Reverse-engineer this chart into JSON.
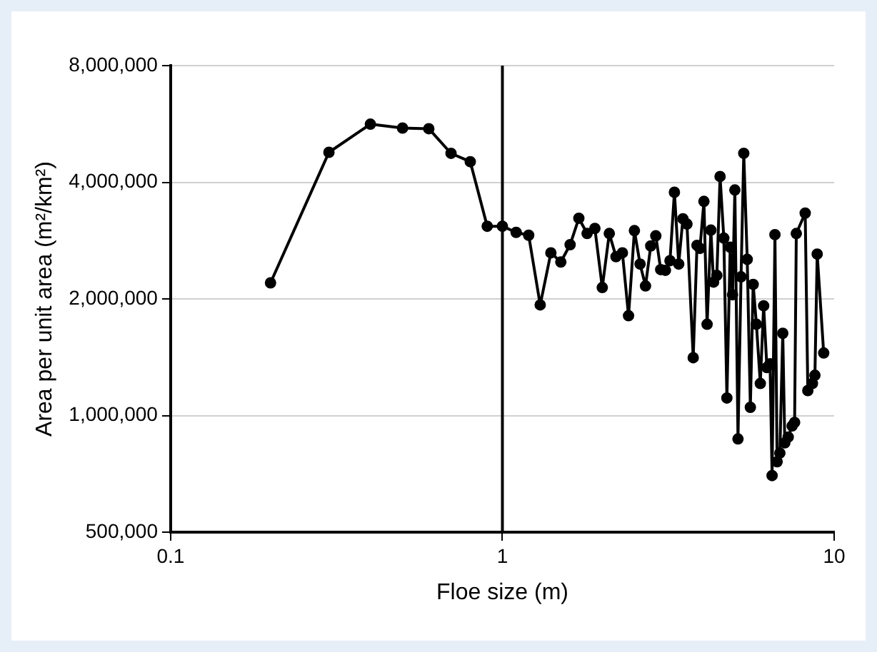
{
  "chart_data": {
    "type": "line",
    "xlabel": "Floe size (m)",
    "ylabel": "Area per unit area (m²/km²)",
    "log": "xy",
    "xlim": [
      0.1,
      10
    ],
    "xticks": [
      0.1,
      1,
      10
    ],
    "ylim": [
      500000,
      8000000
    ],
    "yticks": [
      {
        "value": 500000,
        "label": "500,000"
      },
      {
        "value": 1000000,
        "label": "1,000,000"
      },
      {
        "value": 2000000,
        "label": "2,000,000"
      },
      {
        "value": 4000000,
        "label": "4,000,000"
      },
      {
        "value": 8000000,
        "label": "8,000,000"
      }
    ],
    "grid": "y",
    "marker": "circle",
    "line_style": "solid",
    "ref_lines": [
      {
        "axis": "x",
        "value": 1,
        "color": "#000000"
      }
    ],
    "series": [
      {
        "color": "#000000",
        "x": [
          0.2,
          0.3,
          0.4,
          0.5,
          0.6,
          0.7,
          0.8,
          0.9,
          1.0,
          1.1,
          1.2,
          1.3,
          1.4,
          1.5,
          1.6,
          1.7,
          1.8,
          1.9,
          2.0,
          2.1,
          2.2,
          2.3,
          2.4,
          2.5,
          2.6,
          2.7,
          2.8,
          2.9,
          3.0,
          3.1,
          3.2,
          3.3,
          3.4,
          3.5,
          3.6,
          3.76,
          3.86,
          3.94,
          4.05,
          4.14,
          4.25,
          4.33,
          4.43,
          4.53,
          4.65,
          4.75,
          4.86,
          4.94,
          5.02,
          5.13,
          5.24,
          5.34,
          5.47,
          5.59,
          5.7,
          5.83,
          5.99,
          6.13,
          6.27,
          6.41,
          6.5,
          6.63,
          6.73,
          6.86,
          7.0,
          7.1,
          7.27,
          7.47,
          7.6,
          7.69,
          8.18,
          8.33,
          8.6,
          8.75,
          8.89,
          9.3
        ],
        "values": [
          2200000,
          4780000,
          5650000,
          5520000,
          5500000,
          4750000,
          4520000,
          3080000,
          3080000,
          2970000,
          2920000,
          1930000,
          2630000,
          2490000,
          2760000,
          3230000,
          2950000,
          3040000,
          2140000,
          2950000,
          2570000,
          2630000,
          1810000,
          3000000,
          2460000,
          2160000,
          2740000,
          2910000,
          2380000,
          2370000,
          2510000,
          3770000,
          2460000,
          3220000,
          3120000,
          1410000,
          2750000,
          2700000,
          3570000,
          1720000,
          3010000,
          2210000,
          2300000,
          4140000,
          2870000,
          1110000,
          2720000,
          2050000,
          3820000,
          870000,
          2280000,
          4750000,
          2530000,
          1050000,
          2180000,
          1720000,
          1210000,
          1920000,
          1330000,
          1360000,
          700000,
          2930000,
          760000,
          800000,
          1630000,
          850000,
          880000,
          940000,
          960000,
          2950000,
          3330000,
          1160000,
          1210000,
          1270000,
          2610000,
          1450000
        ]
      }
    ]
  }
}
